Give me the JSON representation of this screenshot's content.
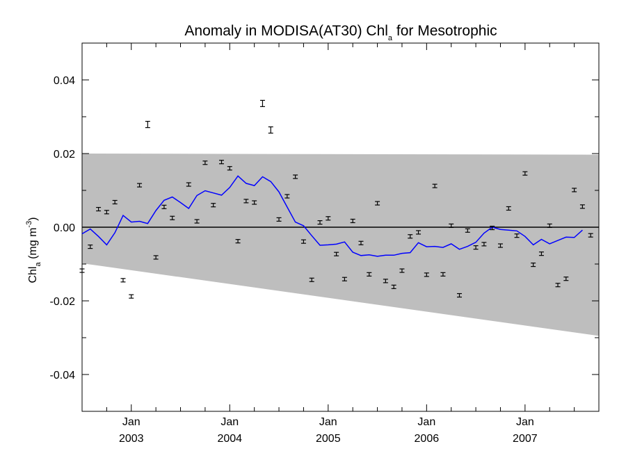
{
  "chart_data": {
    "type": "scatter",
    "title": "Anomaly in MODISA(AT30) Chl",
    "title_sub": "a",
    "title_suffix": " for Mesotrophic",
    "ylabel": "Chl",
    "ylabel_sub": "a",
    "ylabel_unit": " (mg m",
    "ylabel_sup": "-3",
    "ylabel_close": ")",
    "ylim": [
      -0.05,
      0.05
    ],
    "xlim": [
      "2002-07",
      "2007-10"
    ],
    "yticks": [
      {
        "value": 0.04,
        "label": "0.04"
      },
      {
        "value": 0.02,
        "label": "0.02"
      },
      {
        "value": 0.0,
        "label": "0.00"
      },
      {
        "value": -0.02,
        "label": "-0.02"
      },
      {
        "value": -0.04,
        "label": "-0.04"
      }
    ],
    "xticks": [
      {
        "date": "2003-01",
        "month": "Jan",
        "year": "2003"
      },
      {
        "date": "2004-01",
        "month": "Jan",
        "year": "2004"
      },
      {
        "date": "2005-01",
        "month": "Jan",
        "year": "2005"
      },
      {
        "date": "2006-01",
        "month": "Jan",
        "year": "2006"
      },
      {
        "date": "2007-01",
        "month": "Jan",
        "year": "2007"
      }
    ],
    "band": {
      "upper": [
        0.02,
        0.0197
      ],
      "lower": [
        -0.0098,
        -0.0295
      ]
    },
    "points": [
      {
        "date": "2002-07",
        "y": -0.0118
      },
      {
        "date": "2002-08",
        "y": -0.0053
      },
      {
        "date": "2002-09",
        "y": 0.0049
      },
      {
        "date": "2002-10",
        "y": 0.0041
      },
      {
        "date": "2002-11",
        "y": 0.0068
      },
      {
        "date": "2002-12",
        "y": -0.0144
      },
      {
        "date": "2003-01",
        "y": -0.0188
      },
      {
        "date": "2003-02",
        "y": 0.0114
      },
      {
        "date": "2003-03",
        "y": 0.0279
      },
      {
        "date": "2003-04",
        "y": -0.0082
      },
      {
        "date": "2003-05",
        "y": 0.0055
      },
      {
        "date": "2003-06",
        "y": 0.0025
      },
      {
        "date": "2003-08",
        "y": 0.0116
      },
      {
        "date": "2003-09",
        "y": 0.0016
      },
      {
        "date": "2003-10",
        "y": 0.0175
      },
      {
        "date": "2003-11",
        "y": 0.006
      },
      {
        "date": "2003-12",
        "y": 0.0177
      },
      {
        "date": "2004-01",
        "y": 0.016
      },
      {
        "date": "2004-02",
        "y": -0.0038
      },
      {
        "date": "2004-03",
        "y": 0.0071
      },
      {
        "date": "2004-04",
        "y": 0.0067
      },
      {
        "date": "2004-05",
        "y": 0.0336
      },
      {
        "date": "2004-06",
        "y": 0.0264
      },
      {
        "date": "2004-07",
        "y": 0.0021
      },
      {
        "date": "2004-08",
        "y": 0.0084
      },
      {
        "date": "2004-09",
        "y": 0.0137
      },
      {
        "date": "2004-10",
        "y": -0.0039
      },
      {
        "date": "2004-11",
        "y": -0.0143
      },
      {
        "date": "2004-12",
        "y": 0.0013
      },
      {
        "date": "2005-01",
        "y": 0.0024
      },
      {
        "date": "2005-02",
        "y": -0.0073
      },
      {
        "date": "2005-03",
        "y": -0.0141
      },
      {
        "date": "2005-04",
        "y": 0.0017
      },
      {
        "date": "2005-05",
        "y": -0.0043
      },
      {
        "date": "2005-06",
        "y": -0.0128
      },
      {
        "date": "2005-07",
        "y": 0.0065
      },
      {
        "date": "2005-08",
        "y": -0.0146
      },
      {
        "date": "2005-09",
        "y": -0.0162
      },
      {
        "date": "2005-10",
        "y": -0.0118
      },
      {
        "date": "2005-11",
        "y": -0.0025
      },
      {
        "date": "2005-12",
        "y": -0.0014
      },
      {
        "date": "2006-01",
        "y": -0.0129
      },
      {
        "date": "2006-02",
        "y": 0.0112
      },
      {
        "date": "2006-03",
        "y": -0.0128
      },
      {
        "date": "2006-04",
        "y": 0.0004
      },
      {
        "date": "2006-05",
        "y": -0.0185
      },
      {
        "date": "2006-06",
        "y": -0.0009
      },
      {
        "date": "2006-07",
        "y": -0.0055
      },
      {
        "date": "2006-08",
        "y": -0.0046
      },
      {
        "date": "2006-09",
        "y": -0.0002
      },
      {
        "date": "2006-10",
        "y": -0.005
      },
      {
        "date": "2006-11",
        "y": 0.0051
      },
      {
        "date": "2006-12",
        "y": -0.0023
      },
      {
        "date": "2007-01",
        "y": 0.0146
      },
      {
        "date": "2007-02",
        "y": -0.0102
      },
      {
        "date": "2007-03",
        "y": -0.0072
      },
      {
        "date": "2007-04",
        "y": 0.0004
      },
      {
        "date": "2007-05",
        "y": -0.0157
      },
      {
        "date": "2007-06",
        "y": -0.014
      },
      {
        "date": "2007-07",
        "y": 0.0101
      },
      {
        "date": "2007-08",
        "y": 0.0056
      },
      {
        "date": "2007-09",
        "y": -0.0022
      }
    ],
    "smoothed": [
      {
        "date": "2002-07",
        "y": -0.0018
      },
      {
        "date": "2002-08",
        "y": -0.0005
      },
      {
        "date": "2002-09",
        "y": -0.0025
      },
      {
        "date": "2002-10",
        "y": -0.0048
      },
      {
        "date": "2002-11",
        "y": -0.0015
      },
      {
        "date": "2002-12",
        "y": 0.0032
      },
      {
        "date": "2003-01",
        "y": 0.0014
      },
      {
        "date": "2003-02",
        "y": 0.0016
      },
      {
        "date": "2003-03",
        "y": 0.001
      },
      {
        "date": "2003-04",
        "y": 0.0045
      },
      {
        "date": "2003-05",
        "y": 0.0073
      },
      {
        "date": "2003-06",
        "y": 0.0082
      },
      {
        "date": "2003-07",
        "y": 0.0067
      },
      {
        "date": "2003-08",
        "y": 0.0051
      },
      {
        "date": "2003-09",
        "y": 0.0086
      },
      {
        "date": "2003-10",
        "y": 0.0099
      },
      {
        "date": "2003-11",
        "y": 0.0093
      },
      {
        "date": "2003-12",
        "y": 0.0087
      },
      {
        "date": "2004-01",
        "y": 0.0108
      },
      {
        "date": "2004-02",
        "y": 0.0139
      },
      {
        "date": "2004-03",
        "y": 0.0119
      },
      {
        "date": "2004-04",
        "y": 0.0113
      },
      {
        "date": "2004-05",
        "y": 0.0137
      },
      {
        "date": "2004-06",
        "y": 0.0124
      },
      {
        "date": "2004-07",
        "y": 0.0096
      },
      {
        "date": "2004-08",
        "y": 0.0055
      },
      {
        "date": "2004-09",
        "y": 0.0014
      },
      {
        "date": "2004-10",
        "y": 0.0004
      },
      {
        "date": "2004-11",
        "y": -0.0023
      },
      {
        "date": "2004-12",
        "y": -0.0049
      },
      {
        "date": "2005-01",
        "y": -0.0048
      },
      {
        "date": "2005-02",
        "y": -0.0046
      },
      {
        "date": "2005-03",
        "y": -0.004
      },
      {
        "date": "2005-04",
        "y": -0.0068
      },
      {
        "date": "2005-05",
        "y": -0.0077
      },
      {
        "date": "2005-06",
        "y": -0.0075
      },
      {
        "date": "2005-07",
        "y": -0.0079
      },
      {
        "date": "2005-08",
        "y": -0.0076
      },
      {
        "date": "2005-09",
        "y": -0.0076
      },
      {
        "date": "2005-10",
        "y": -0.0071
      },
      {
        "date": "2005-11",
        "y": -0.0069
      },
      {
        "date": "2005-12",
        "y": -0.0042
      },
      {
        "date": "2006-01",
        "y": -0.0053
      },
      {
        "date": "2006-02",
        "y": -0.0052
      },
      {
        "date": "2006-03",
        "y": -0.0055
      },
      {
        "date": "2006-04",
        "y": -0.0045
      },
      {
        "date": "2006-05",
        "y": -0.006
      },
      {
        "date": "2006-06",
        "y": -0.0052
      },
      {
        "date": "2006-07",
        "y": -0.0041
      },
      {
        "date": "2006-08",
        "y": -0.0016
      },
      {
        "date": "2006-09",
        "y": 0.0
      },
      {
        "date": "2006-10",
        "y": -0.0006
      },
      {
        "date": "2006-11",
        "y": -0.0008
      },
      {
        "date": "2006-12",
        "y": -0.001
      },
      {
        "date": "2007-01",
        "y": -0.0025
      },
      {
        "date": "2007-02",
        "y": -0.0048
      },
      {
        "date": "2007-03",
        "y": -0.0033
      },
      {
        "date": "2007-04",
        "y": -0.0045
      },
      {
        "date": "2007-05",
        "y": -0.0036
      },
      {
        "date": "2007-06",
        "y": -0.0027
      },
      {
        "date": "2007-07",
        "y": -0.0028
      },
      {
        "date": "2007-08",
        "y": -0.0008
      }
    ],
    "colors": {
      "band": "#bebebe",
      "line": "#0000ff",
      "points": "#000000",
      "zero": "#000000"
    }
  }
}
